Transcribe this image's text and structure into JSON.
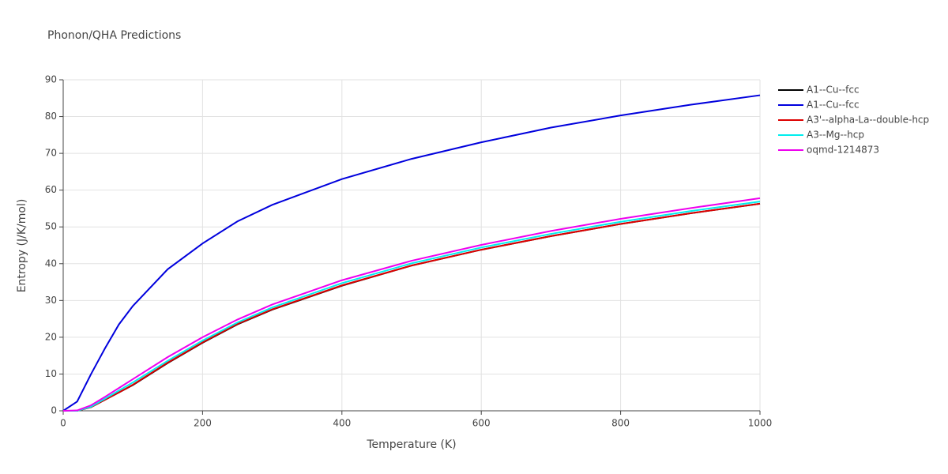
{
  "chart_data": {
    "type": "line",
    "title": "Phonon/QHA Predictions",
    "xlabel": "Temperature (K)",
    "ylabel": "Entropy (J/K/mol)",
    "x": [
      0,
      20,
      40,
      60,
      80,
      100,
      150,
      200,
      250,
      300,
      400,
      500,
      600,
      700,
      800,
      900,
      1000
    ],
    "series": [
      {
        "name": "A1--Cu--fcc",
        "color": "#000000",
        "values": [
          0,
          0,
          1,
          3,
          5,
          7,
          13,
          18.5,
          23.5,
          27.5,
          34,
          39.5,
          43.8,
          47.5,
          50.8,
          53.7,
          56.3
        ]
      },
      {
        "name": "A1--Cu--fcc",
        "color": "#0000dd",
        "values": [
          0,
          2.5,
          10,
          17,
          23.5,
          28.5,
          38.5,
          45.5,
          51.5,
          56,
          63,
          68.5,
          73,
          77,
          80.3,
          83.2,
          85.8
        ]
      },
      {
        "name": "A3'--alpha-La--double-hcp",
        "color": "#dd0000",
        "values": [
          0,
          0,
          1,
          3,
          5,
          7.1,
          13.1,
          18.6,
          23.6,
          27.6,
          34.1,
          39.5,
          43.8,
          47.5,
          50.8,
          53.7,
          56.3
        ]
      },
      {
        "name": "A3--Mg--hcp",
        "color": "#00eeee",
        "values": [
          0,
          0,
          1.1,
          3.3,
          5.5,
          7.7,
          13.6,
          19.1,
          24,
          28.1,
          34.7,
          40.1,
          44.4,
          48.1,
          51.4,
          54.3,
          56.9
        ]
      },
      {
        "name": "oqmd-1214873",
        "color": "#ee00ee",
        "values": [
          0,
          0.1,
          1.5,
          3.8,
          6.2,
          8.6,
          14.6,
          20,
          24.8,
          28.9,
          35.5,
          40.8,
          45.1,
          48.9,
          52.2,
          55.1,
          57.8
        ]
      }
    ],
    "xlim": [
      0,
      1000
    ],
    "xticks": [
      0,
      200,
      400,
      600,
      800,
      1000
    ],
    "ylim": [
      0,
      90
    ],
    "yticks": [
      0,
      10,
      20,
      30,
      40,
      50,
      60,
      70,
      80,
      90
    ],
    "grid": true,
    "legend": "right"
  }
}
